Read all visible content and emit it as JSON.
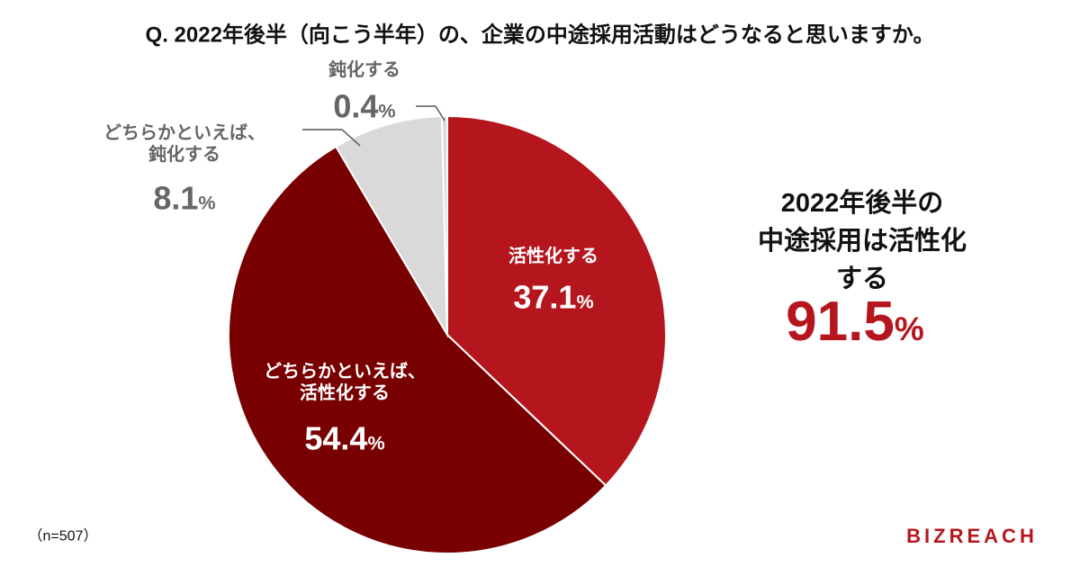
{
  "chart_data": {
    "type": "pie",
    "title": "Q. 2022年後半（向こう半年）の、企業の中途採用活動はどうなると思いますか。",
    "categories": [
      "活性化する",
      "どちらかといえば、\n活性化する",
      "どちらかといえば、\n鈍化する",
      "鈍化する"
    ],
    "values": [
      37.1,
      54.4,
      8.1,
      0.4
    ],
    "value_labels": [
      "37.1%",
      "54.4%",
      "8.1%",
      "0.4%"
    ],
    "colors": [
      "#b5161e",
      "#780000",
      "#d9d9d9",
      "#d9d9d9"
    ],
    "annotation": {
      "text": "2022年後半の\n中途採用は活性化する",
      "value": 91.5,
      "value_label": "91.5%",
      "color": "#b5161e"
    },
    "note": "（n=507）",
    "logo": "BIZREACH"
  }
}
